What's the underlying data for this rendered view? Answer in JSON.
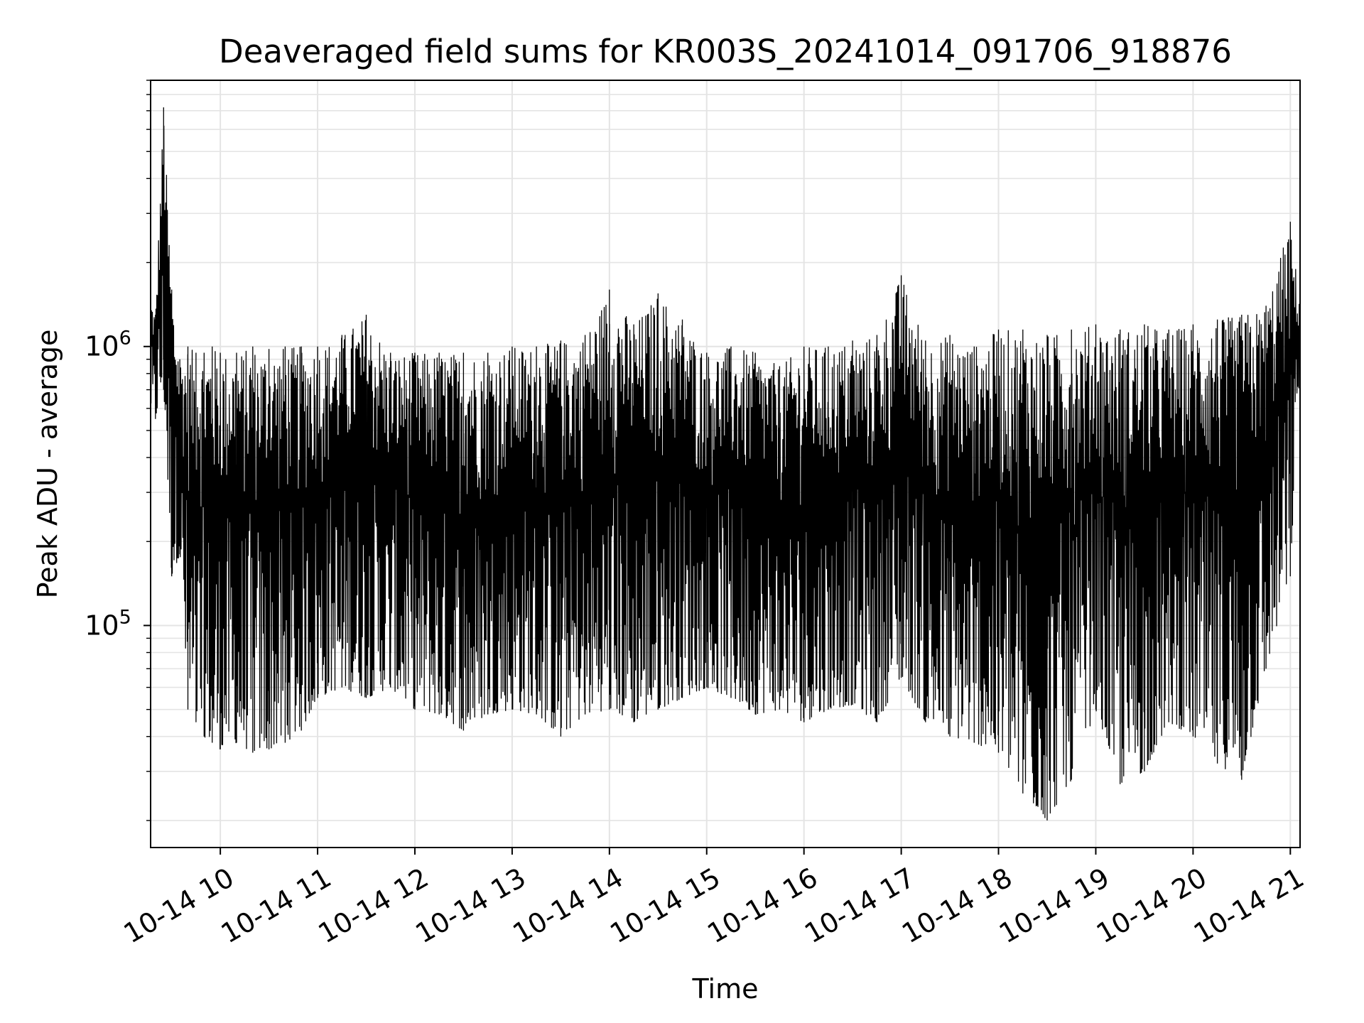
{
  "chart_data": {
    "type": "line",
    "title": "Deaveraged field sums for KR003S_20241014_091706_918876",
    "xlabel": "Time",
    "ylabel": "Peak ADU - average",
    "y_scale": "log",
    "ylim": [
      16000,
      9000000
    ],
    "xlim": [
      "10-14 09:17",
      "10-14 21:06"
    ],
    "grid": true,
    "x_tick_labels": [
      "10-14 10",
      "10-14 11",
      "10-14 12",
      "10-14 13",
      "10-14 14",
      "10-14 15",
      "10-14 16",
      "10-14 17",
      "10-14 18",
      "10-14 19",
      "10-14 20",
      "10-14 21"
    ],
    "x_tick_times": [
      "10-14 10:00",
      "10-14 11:00",
      "10-14 12:00",
      "10-14 13:00",
      "10-14 14:00",
      "10-14 15:00",
      "10-14 16:00",
      "10-14 17:00",
      "10-14 18:00",
      "10-14 19:00",
      "10-14 20:00",
      "10-14 21:00"
    ],
    "y_ticks": [
      {
        "value": 100000,
        "base": "10",
        "exp": "5"
      },
      {
        "value": 1000000,
        "base": "10",
        "exp": "6"
      }
    ],
    "line_color": "#000000",
    "series": [
      {
        "x": [
          "10-14 09:17",
          "10-14 09:20",
          "10-14 09:25",
          "10-14 09:30",
          "10-14 09:35",
          "10-14 09:40",
          "10-14 09:45",
          "10-14 09:50",
          "10-14 09:55",
          "10-14 10:00",
          "10-14 10:10",
          "10-14 10:20",
          "10-14 10:30",
          "10-14 10:40",
          "10-14 10:50",
          "10-14 11:00",
          "10-14 11:15",
          "10-14 11:30",
          "10-14 11:45",
          "10-14 12:00",
          "10-14 12:15",
          "10-14 12:30",
          "10-14 12:45",
          "10-14 13:00",
          "10-14 13:15",
          "10-14 13:30",
          "10-14 13:45",
          "10-14 14:00",
          "10-14 14:15",
          "10-14 14:30",
          "10-14 14:45",
          "10-14 15:00",
          "10-14 15:15",
          "10-14 15:30",
          "10-14 15:45",
          "10-14 16:00",
          "10-14 16:15",
          "10-14 16:30",
          "10-14 16:45",
          "10-14 17:00",
          "10-14 17:15",
          "10-14 17:30",
          "10-14 17:45",
          "10-14 18:00",
          "10-14 18:15",
          "10-14 18:30",
          "10-14 18:45",
          "10-14 19:00",
          "10-14 19:15",
          "10-14 19:30",
          "10-14 19:45",
          "10-14 20:00",
          "10-14 20:15",
          "10-14 20:30",
          "10-14 20:45",
          "10-14 21:00",
          "10-14 21:06"
        ],
        "low": [
          600000,
          550000,
          700000,
          150000,
          180000,
          50000,
          45000,
          40000,
          38000,
          36000,
          38000,
          35000,
          36000,
          38000,
          42000,
          55000,
          60000,
          55000,
          60000,
          50000,
          48000,
          42000,
          48000,
          50000,
          48000,
          40000,
          48000,
          50000,
          45000,
          50000,
          55000,
          60000,
          55000,
          48000,
          50000,
          45000,
          50000,
          52000,
          45000,
          65000,
          45000,
          40000,
          38000,
          35000,
          25000,
          20000,
          28000,
          50000,
          27000,
          30000,
          45000,
          40000,
          32000,
          28000,
          70000,
          150000,
          900000
        ],
        "high": [
          1500000,
          1300000,
          7200000,
          1600000,
          900000,
          1000000,
          950000,
          950000,
          1000000,
          950000,
          950000,
          1000000,
          980000,
          1000000,
          1000000,
          1000000,
          1100000,
          1300000,
          950000,
          950000,
          950000,
          950000,
          950000,
          1000000,
          1000000,
          1050000,
          1100000,
          1600000,
          1200000,
          1550000,
          1250000,
          950000,
          1000000,
          950000,
          850000,
          1000000,
          1000000,
          1050000,
          1100000,
          1800000,
          1050000,
          1100000,
          1000000,
          1150000,
          1150000,
          1100000,
          1150000,
          1200000,
          1150000,
          1200000,
          1150000,
          1200000,
          1250000,
          1300000,
          1400000,
          2800000,
          1400000
        ]
      }
    ]
  }
}
